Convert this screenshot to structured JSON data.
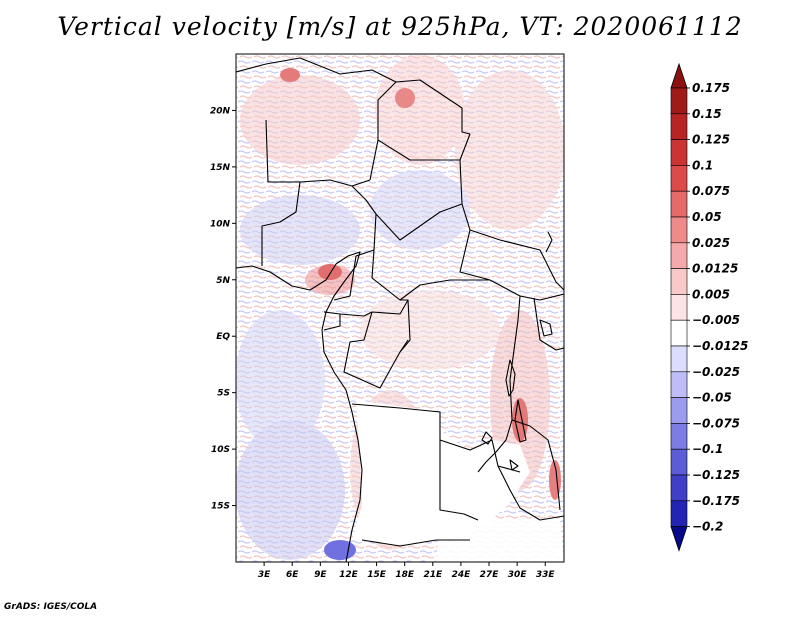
{
  "title": "Vertical velocity [m/s] at 925hPa, VT: 2020061112",
  "credit": "GrADS: IGES/COLA",
  "map": {
    "lon_range": [
      0,
      35
    ],
    "lat_range": [
      -20,
      25
    ],
    "lat_ticks": [
      {
        "value": 20,
        "label": "20N"
      },
      {
        "value": 15,
        "label": "15N"
      },
      {
        "value": 10,
        "label": "10N"
      },
      {
        "value": 5,
        "label": "5N"
      },
      {
        "value": 0,
        "label": "EQ"
      },
      {
        "value": -5,
        "label": "5S"
      },
      {
        "value": -10,
        "label": "10S"
      },
      {
        "value": -15,
        "label": "15S"
      }
    ],
    "lon_ticks": [
      {
        "value": 3,
        "label": "3E"
      },
      {
        "value": 6,
        "label": "6E"
      },
      {
        "value": 9,
        "label": "9E"
      },
      {
        "value": 12,
        "label": "12E"
      },
      {
        "value": 15,
        "label": "15E"
      },
      {
        "value": 18,
        "label": "18E"
      },
      {
        "value": 21,
        "label": "21E"
      },
      {
        "value": 24,
        "label": "24E"
      },
      {
        "value": 27,
        "label": "27E"
      },
      {
        "value": 30,
        "label": "30E"
      },
      {
        "value": 33,
        "label": "33E"
      }
    ]
  },
  "colorbar": {
    "levels": [
      {
        "label": "0.175",
        "color": "#a01a1a"
      },
      {
        "label": "0.15",
        "color": "#b82424"
      },
      {
        "label": "0.125",
        "color": "#cc3333"
      },
      {
        "label": "0.1",
        "color": "#dd4a4a"
      },
      {
        "label": "0.075",
        "color": "#e66a6a"
      },
      {
        "label": "0.05",
        "color": "#ee8a8a"
      },
      {
        "label": "0.025",
        "color": "#f4aaaa"
      },
      {
        "label": "0.0125",
        "color": "#f9c8c8"
      },
      {
        "label": "0.005",
        "color": "#fde4e4"
      },
      {
        "label": "−0.005",
        "color": "#ffffff"
      },
      {
        "label": "−0.0125",
        "color": "#dcdcff"
      },
      {
        "label": "−0.025",
        "color": "#bdbdf8"
      },
      {
        "label": "−0.05",
        "color": "#9c9cef"
      },
      {
        "label": "−0.075",
        "color": "#7c7ce4"
      },
      {
        "label": "−0.1",
        "color": "#5c5cd6"
      },
      {
        "label": "−0.125",
        "color": "#3f3fc8"
      },
      {
        "label": "−0.175",
        "color": "#2424b4"
      },
      {
        "label": "−0.2",
        "color": "#1212a0"
      }
    ],
    "top_arrow_color": "#8b1010",
    "bottom_arrow_color": "#08088a"
  }
}
